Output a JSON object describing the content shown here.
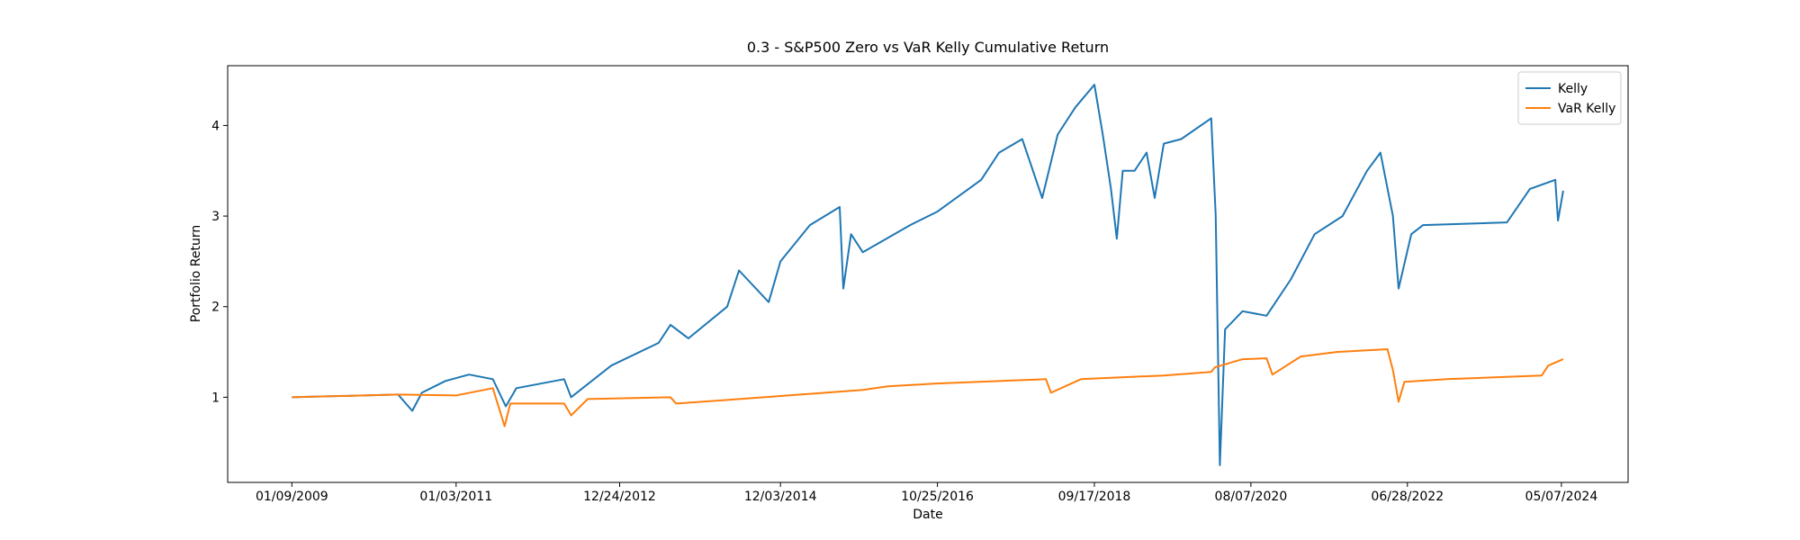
{
  "chart_data": {
    "type": "line",
    "title": "0.3 - S&P500 Zero vs VaR Kelly Cumulative Return",
    "xlabel": "Date",
    "ylabel": "Portfolio Return",
    "xlim": [
      "04/01/2008",
      "02/25/2025"
    ],
    "xticks": [
      "01/09/2009",
      "01/03/2011",
      "12/24/2012",
      "12/03/2014",
      "10/25/2016",
      "09/17/2018",
      "08/07/2020",
      "06/28/2022",
      "05/07/2024"
    ],
    "ylim": [
      0.06,
      4.66
    ],
    "yticks": [
      1,
      2,
      3,
      4
    ],
    "legend": "upper right",
    "series": [
      {
        "name": "Kelly",
        "color": "#1f77b4",
        "x": [
          "01/09/2009",
          "04/22/2010",
          "06/24/2010",
          "08/05/2010",
          "11/17/2010",
          "03/01/2011",
          "06/14/2011",
          "08/10/2011",
          "09/26/2011",
          "04/23/2012",
          "05/24/2012",
          "11/17/2012",
          "06/14/2013",
          "08/05/2013",
          "10/23/2013",
          "04/12/2014",
          "06/03/2014",
          "10/12/2014",
          "12/03/2014",
          "04/12/2015",
          "08/21/2015",
          "09/06/2015",
          "10/10/2015",
          "12/01/2015",
          "06/27/2016",
          "10/25/2016",
          "05/06/2017",
          "07/24/2017",
          "11/03/2017",
          "01/30/2018",
          "04/08/2018",
          "06/25/2018",
          "09/17/2018",
          "10/24/2018",
          "11/29/2018",
          "12/25/2018",
          "01/20/2019",
          "03/13/2019",
          "05/05/2019",
          "06/10/2019",
          "07/20/2019",
          "10/05/2019",
          "02/14/2020",
          "03/05/2020",
          "03/23/2020",
          "04/15/2020",
          "07/01/2020",
          "10/15/2020",
          "01/30/2021",
          "05/15/2021",
          "09/15/2021",
          "01/01/2022",
          "03/01/2022",
          "04/25/2022",
          "05/20/2022",
          "07/15/2022",
          "09/05/2022",
          "09/10/2023",
          "12/20/2023",
          "04/10/2024",
          "04/22/2024",
          "05/15/2024"
        ],
        "values": [
          1.0,
          1.03,
          0.85,
          1.05,
          1.18,
          1.25,
          1.2,
          0.9,
          1.1,
          1.2,
          1.0,
          1.35,
          1.6,
          1.8,
          1.65,
          2.0,
          2.4,
          2.05,
          2.5,
          2.9,
          3.1,
          2.2,
          2.8,
          2.6,
          2.9,
          3.05,
          3.4,
          3.7,
          3.85,
          3.2,
          3.9,
          4.2,
          4.45,
          3.9,
          3.3,
          2.75,
          3.5,
          3.5,
          3.7,
          3.2,
          3.8,
          3.85,
          4.08,
          3.0,
          0.25,
          1.75,
          1.95,
          1.9,
          2.3,
          2.8,
          3.0,
          3.5,
          3.7,
          3.0,
          2.2,
          2.8,
          2.9,
          2.93,
          3.3,
          3.4,
          2.95,
          3.28
        ]
      },
      {
        "name": "VaR Kelly",
        "color": "#ff7f0e",
        "x": [
          "01/09/2009",
          "04/22/2010",
          "01/03/2011",
          "06/14/2011",
          "08/05/2011",
          "08/30/2011",
          "04/23/2012",
          "05/24/2012",
          "08/05/2012",
          "08/05/2013",
          "08/30/2013",
          "04/12/2014",
          "03/01/2015",
          "12/01/2015",
          "03/20/2016",
          "10/10/2016",
          "02/15/2018",
          "03/10/2018",
          "07/20/2018",
          "07/20/2019",
          "02/14/2020",
          "03/01/2020",
          "07/01/2020",
          "10/15/2020",
          "11/10/2020",
          "03/15/2021",
          "08/20/2021",
          "04/01/2022",
          "04/25/2022",
          "05/20/2022",
          "06/15/2022",
          "12/20/2022",
          "02/10/2024",
          "03/10/2024",
          "05/15/2024"
        ],
        "values": [
          1.0,
          1.03,
          1.02,
          1.1,
          0.68,
          0.93,
          0.93,
          0.8,
          0.98,
          1.0,
          0.93,
          0.97,
          1.03,
          1.08,
          1.12,
          1.15,
          1.2,
          1.05,
          1.2,
          1.24,
          1.28,
          1.33,
          1.42,
          1.43,
          1.25,
          1.45,
          1.5,
          1.53,
          1.3,
          0.95,
          1.17,
          1.2,
          1.24,
          1.35,
          1.42
        ]
      }
    ]
  }
}
